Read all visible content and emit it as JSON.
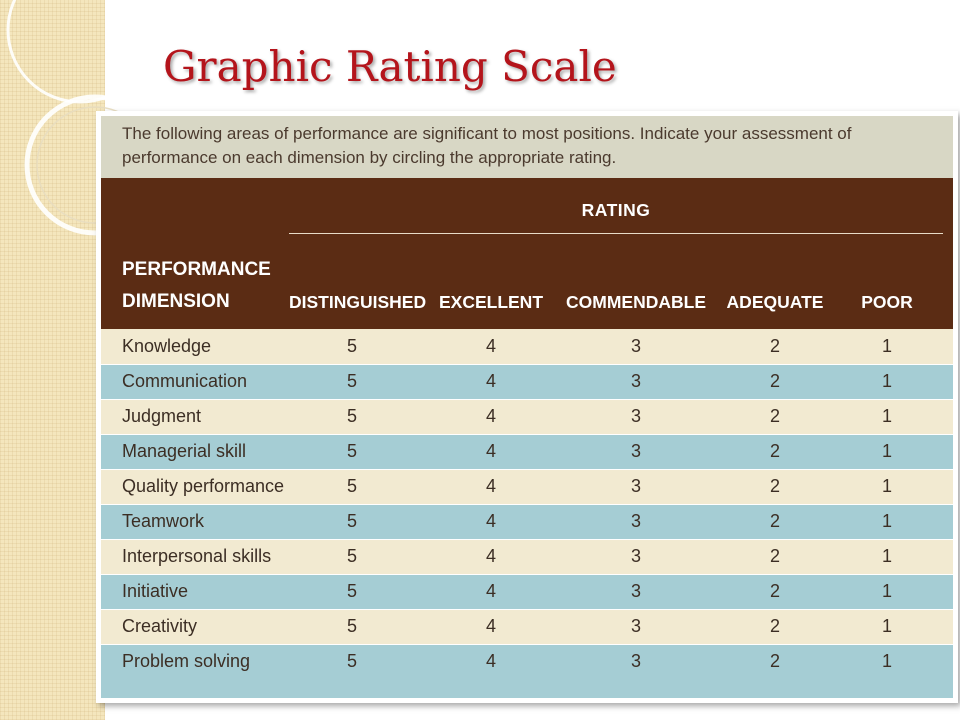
{
  "slide": {
    "title": "Graphic Rating Scale"
  },
  "form": {
    "instructions": "The following areas of performance are significant to most positions. Indicate your assessment of performance on each dimension by circling the appropriate rating.",
    "rating_header": "RATING",
    "dimension_header_line1": "PERFORMANCE",
    "dimension_header_line2": "DIMENSION",
    "columns": [
      "DISTINGUISHED",
      "EXCELLENT",
      "COMMENDABLE",
      "ADEQUATE",
      "POOR"
    ],
    "rows": [
      {
        "dimension": "Knowledge",
        "ratings": [
          "5",
          "4",
          "3",
          "2",
          "1"
        ]
      },
      {
        "dimension": "Communication",
        "ratings": [
          "5",
          "4",
          "3",
          "2",
          "1"
        ]
      },
      {
        "dimension": "Judgment",
        "ratings": [
          "5",
          "4",
          "3",
          "2",
          "1"
        ]
      },
      {
        "dimension": "Managerial skill",
        "ratings": [
          "5",
          "4",
          "3",
          "2",
          "1"
        ]
      },
      {
        "dimension": "Quality performance",
        "ratings": [
          "5",
          "4",
          "3",
          "2",
          "1"
        ]
      },
      {
        "dimension": "Teamwork",
        "ratings": [
          "5",
          "4",
          "3",
          "2",
          "1"
        ]
      },
      {
        "dimension": "Interpersonal skills",
        "ratings": [
          "5",
          "4",
          "3",
          "2",
          "1"
        ]
      },
      {
        "dimension": "Initiative",
        "ratings": [
          "5",
          "4",
          "3",
          "2",
          "1"
        ]
      },
      {
        "dimension": "Creativity",
        "ratings": [
          "5",
          "4",
          "3",
          "2",
          "1"
        ]
      },
      {
        "dimension": "Problem solving",
        "ratings": [
          "5",
          "4",
          "3",
          "2",
          "1"
        ]
      }
    ]
  },
  "colors": {
    "title": "#b4141b",
    "header_background": "#5b2c14",
    "row_light": "#f2ead1",
    "row_blue": "#a5cdd4"
  }
}
